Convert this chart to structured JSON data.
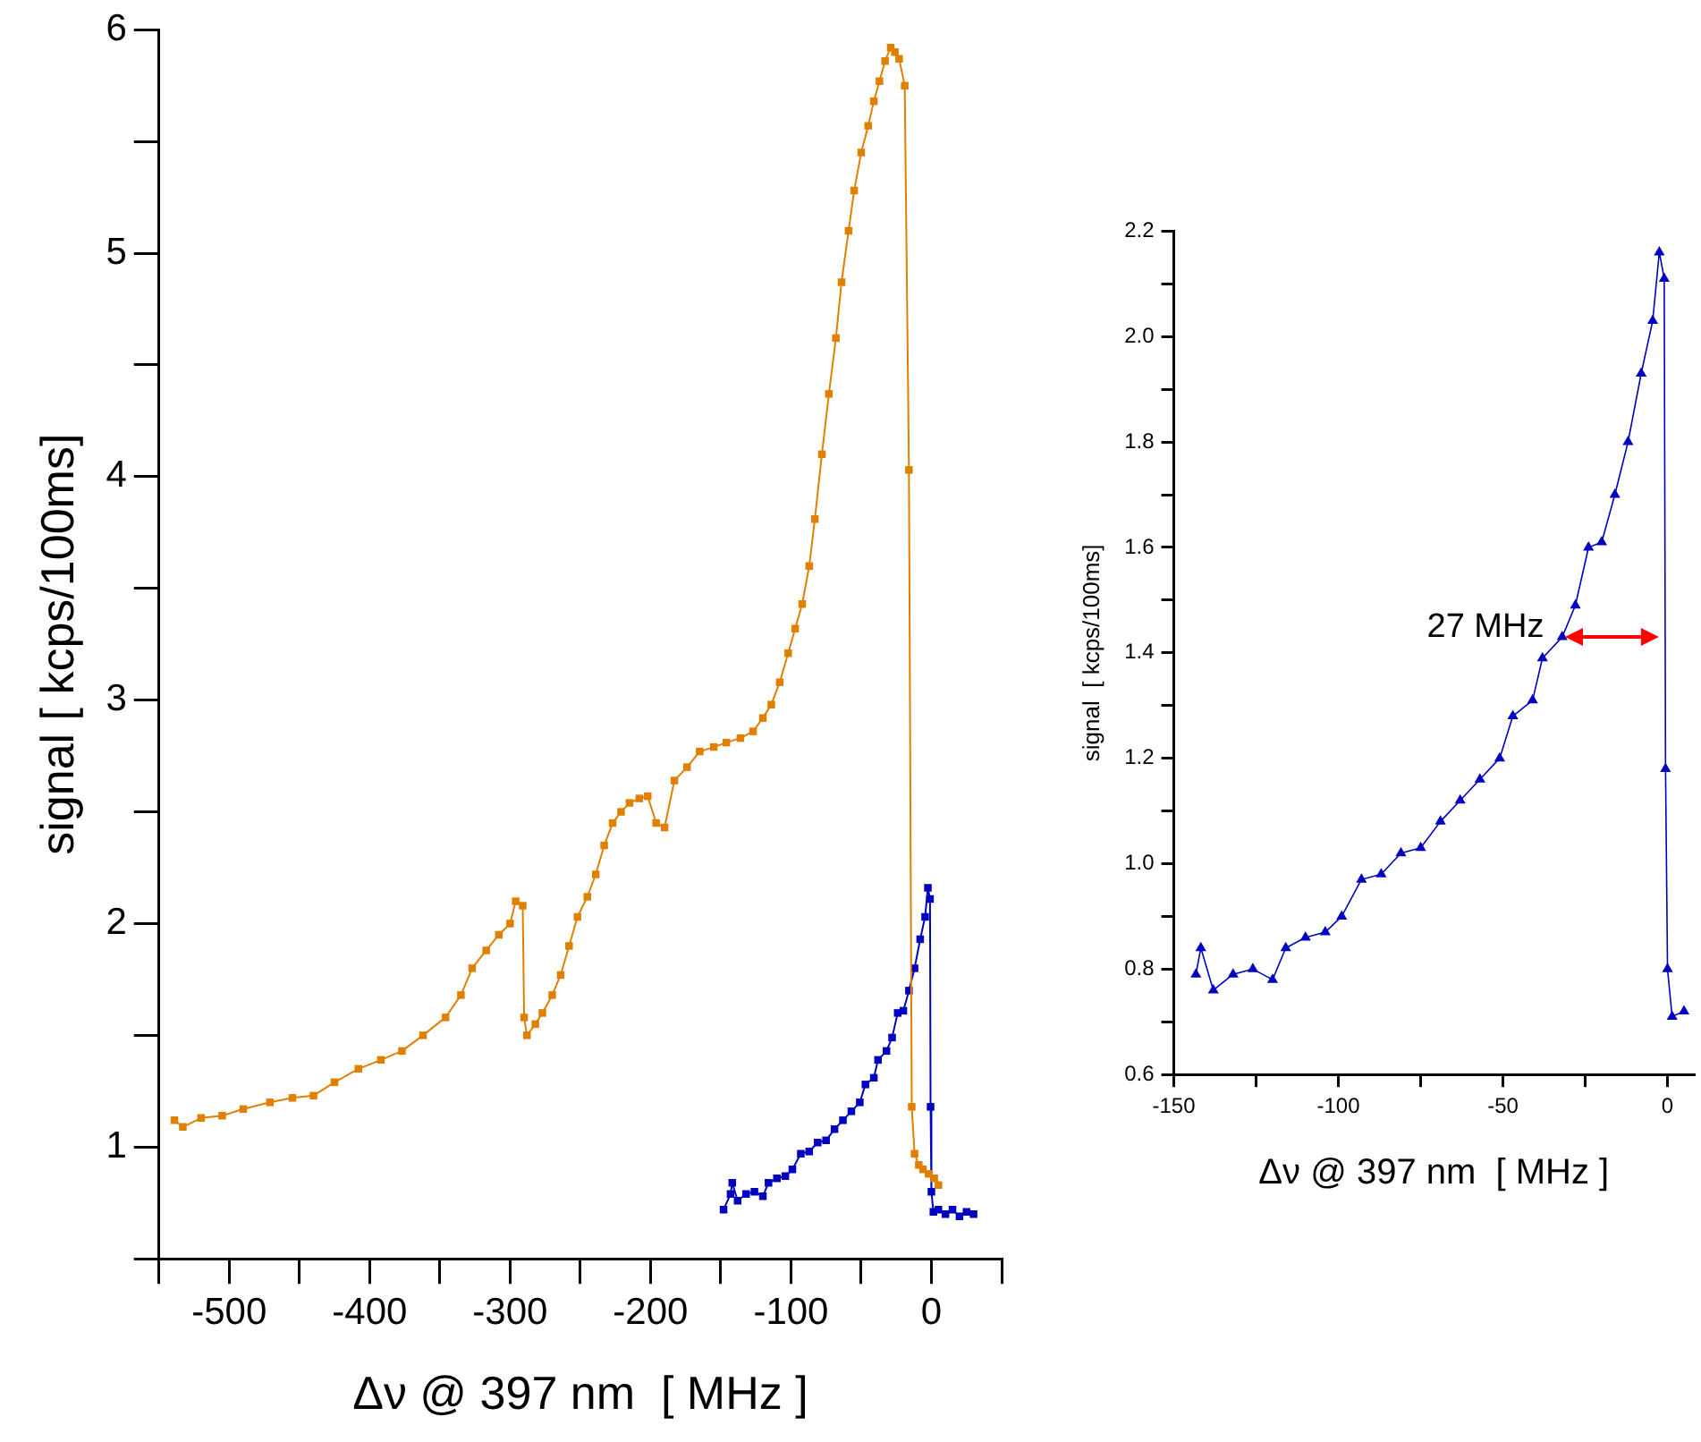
{
  "chart_data": [
    {
      "type": "line",
      "xlabel": "Δν @ 397 nm  [ MHz ]",
      "ylabel": "signal [ kcps/100ms]",
      "marker": "square",
      "line_style": "solid",
      "legend": false,
      "xlim": [
        -550,
        50
      ],
      "ylim": [
        0.5,
        6
      ],
      "xticks": [
        {
          "value": -550,
          "label": null
        },
        -500,
        {
          "value": -450,
          "label": null
        },
        -400,
        {
          "value": -350,
          "label": null
        },
        -300,
        {
          "value": -250,
          "label": null
        },
        -200,
        {
          "value": -150,
          "label": null
        },
        -100,
        {
          "value": -50,
          "label": null
        },
        0,
        {
          "value": 50,
          "label": null
        }
      ],
      "yticks": [
        {
          "value": 0.5,
          "label": null
        },
        1,
        {
          "value": 1.5,
          "label": null
        },
        2,
        {
          "value": 2.5,
          "label": null
        },
        3,
        {
          "value": 3.5,
          "label": null
        },
        4,
        {
          "value": 4.5,
          "label": null
        },
        5,
        {
          "value": 5.5,
          "label": null
        },
        6
      ],
      "series": [
        {
          "color": "#e08000",
          "x": [
            -539,
            -533,
            -520,
            -505,
            -490,
            -471,
            -455,
            -440,
            -425,
            -408,
            -392,
            -377,
            -362,
            -346,
            -335,
            -327,
            -317,
            -308,
            -300,
            -296,
            -291,
            -290,
            -288,
            -282,
            -277,
            -270,
            -264,
            -258,
            -252,
            -245,
            -239,
            -233,
            -227,
            -221,
            -215,
            -208,
            -202,
            -196,
            -190,
            -183,
            -174,
            -165,
            -155,
            -146,
            -136,
            -127,
            -120,
            -114,
            -108,
            -102,
            -97,
            -92,
            -87,
            -83,
            -78,
            -73,
            -68,
            -64,
            -59,
            -55,
            -50,
            -45,
            -41,
            -37,
            -33,
            -29,
            -26,
            -23,
            -19,
            -16,
            -14,
            -12,
            -9,
            -6,
            -2,
            2,
            5
          ],
          "values": [
            1.12,
            1.09,
            1.13,
            1.14,
            1.17,
            1.2,
            1.22,
            1.23,
            1.29,
            1.35,
            1.39,
            1.43,
            1.5,
            1.58,
            1.68,
            1.8,
            1.88,
            1.95,
            2.0,
            2.1,
            2.08,
            1.58,
            1.5,
            1.55,
            1.6,
            1.68,
            1.77,
            1.9,
            2.03,
            2.12,
            2.22,
            2.35,
            2.45,
            2.5,
            2.54,
            2.56,
            2.57,
            2.45,
            2.43,
            2.64,
            2.7,
            2.77,
            2.79,
            2.81,
            2.83,
            2.86,
            2.92,
            2.98,
            3.08,
            3.21,
            3.32,
            3.43,
            3.6,
            3.81,
            4.1,
            4.37,
            4.62,
            4.87,
            5.1,
            5.28,
            5.45,
            5.57,
            5.68,
            5.77,
            5.86,
            5.92,
            5.9,
            5.87,
            5.75,
            4.03,
            1.18,
            0.97,
            0.92,
            0.9,
            0.88,
            0.86,
            0.83
          ]
        },
        {
          "color": "#0000c0",
          "x": [
            -148,
            -143,
            -141.8,
            -138,
            -132,
            -126,
            -120,
            -116,
            -110,
            -104,
            -99,
            -93,
            -87,
            -81,
            -75,
            -69,
            -63,
            -57,
            -51,
            -47,
            -41,
            -38,
            -32,
            -28,
            -24,
            -20,
            -16,
            -12,
            -8,
            -4.5,
            -2.5,
            -1,
            -0.6,
            0,
            1.4,
            5,
            10,
            15,
            20,
            25,
            30
          ],
          "values": [
            0.72,
            0.79,
            0.84,
            0.76,
            0.79,
            0.8,
            0.78,
            0.84,
            0.86,
            0.87,
            0.9,
            0.97,
            0.98,
            1.02,
            1.03,
            1.08,
            1.12,
            1.16,
            1.2,
            1.28,
            1.31,
            1.39,
            1.43,
            1.49,
            1.6,
            1.61,
            1.7,
            1.8,
            1.93,
            2.03,
            2.16,
            2.11,
            1.18,
            0.8,
            0.71,
            0.72,
            0.7,
            0.72,
            0.69,
            0.71,
            0.7
          ]
        }
      ]
    },
    {
      "type": "line",
      "xlabel": "Δν @ 397 nm  [ MHz ]",
      "ylabel": "signal  [ kcps/100ms]",
      "marker": "triangle",
      "line_style": "solid",
      "legend": false,
      "xlim": [
        -150,
        8
      ],
      "ylim": [
        0.6,
        2.2
      ],
      "xticks": [
        -150,
        {
          "value": -125,
          "label": null
        },
        -100,
        {
          "value": -75,
          "label": null
        },
        -50,
        {
          "value": -25,
          "label": null
        },
        0
      ],
      "yticks": [
        {
          "value": 0.6,
          "label": "0.6"
        },
        {
          "value": 0.7,
          "label": null
        },
        {
          "value": 0.8,
          "label": "0.8"
        },
        {
          "value": 0.9,
          "label": null
        },
        {
          "value": 1,
          "label": "1.0"
        },
        {
          "value": 1.1,
          "label": null
        },
        {
          "value": 1.2,
          "label": "1.2"
        },
        {
          "value": 1.3,
          "label": null
        },
        {
          "value": 1.4,
          "label": "1.4"
        },
        {
          "value": 1.5,
          "label": null
        },
        {
          "value": 1.6,
          "label": "1.6"
        },
        {
          "value": 1.7,
          "label": null
        },
        {
          "value": 1.8,
          "label": "1.8"
        },
        {
          "value": 1.9,
          "label": null
        },
        {
          "value": 2,
          "label": "2.0"
        },
        {
          "value": 2.1,
          "label": null
        },
        {
          "value": 2.2,
          "label": "2.2"
        }
      ],
      "annotations": [
        {
          "text": "27 MHz",
          "x": -31,
          "y": 1.43
        }
      ],
      "series": [
        {
          "color": "#0000c0",
          "x": [
            -143.3,
            -141.8,
            -138,
            -132,
            -126,
            -120,
            -116,
            -110,
            -104,
            -99,
            -93,
            -87,
            -81,
            -75,
            -69,
            -63,
            -57,
            -51,
            -47,
            -41,
            -38,
            -32,
            -28,
            -24,
            -20,
            -16,
            -12,
            -8,
            -4.5,
            -2.5,
            -1,
            -0.6,
            0,
            1.4,
            5
          ],
          "values": [
            0.79,
            0.84,
            0.76,
            0.79,
            0.8,
            0.78,
            0.84,
            0.86,
            0.87,
            0.9,
            0.97,
            0.98,
            1.02,
            1.03,
            1.08,
            1.12,
            1.16,
            1.2,
            1.28,
            1.31,
            1.39,
            1.43,
            1.49,
            1.6,
            1.61,
            1.7,
            1.8,
            1.93,
            2.03,
            2.16,
            2.11,
            1.18,
            0.8,
            0.71,
            0.72
          ]
        }
      ]
    }
  ]
}
